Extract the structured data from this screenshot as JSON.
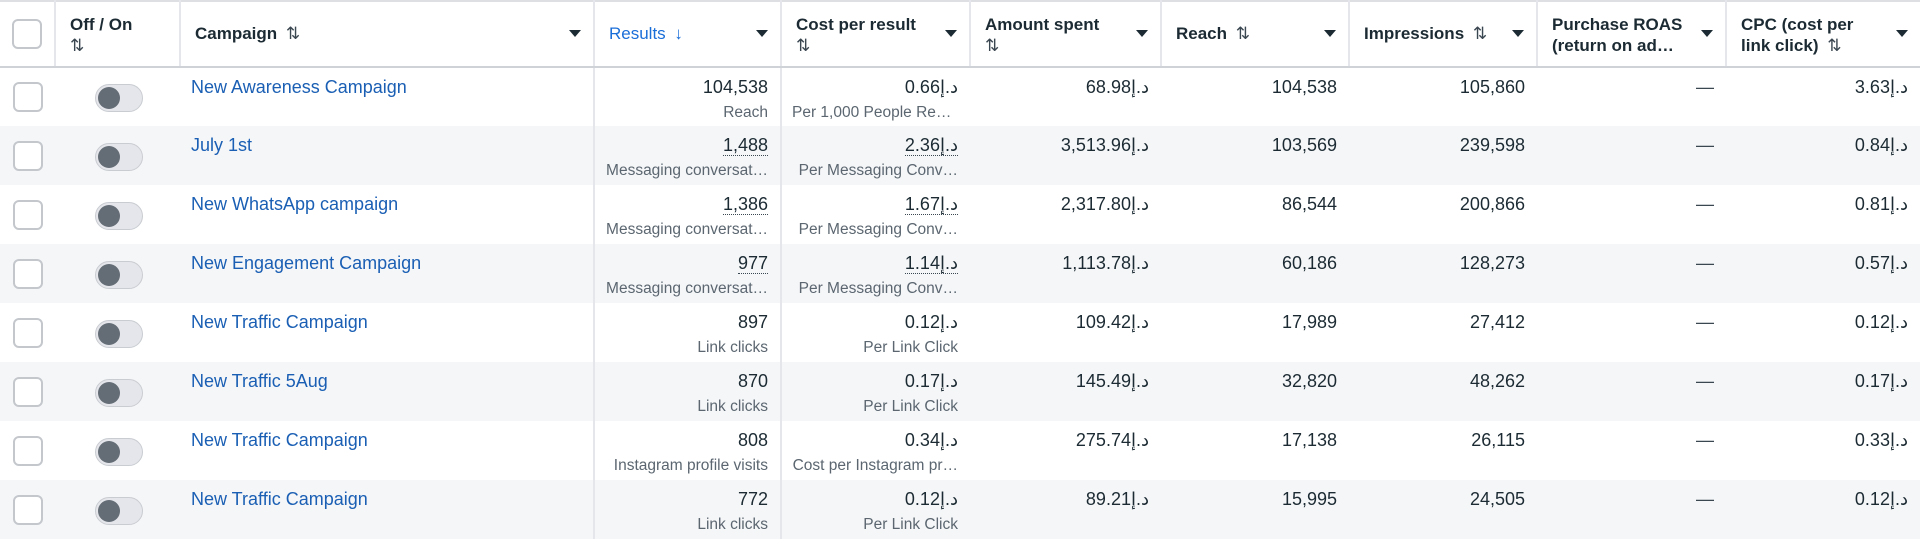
{
  "columns": {
    "toggle": "Off / On",
    "campaign": "Campaign",
    "results": "Results",
    "cost_per_result": "Cost per result",
    "amount_spent": "Amount spent",
    "reach": "Reach",
    "impressions": "Impressions",
    "roas_line1": "Purchase ROAS",
    "roas_line2": "(return on ad…",
    "cpc_line1": "CPC (cost per",
    "cpc_line2": "link click)"
  },
  "icons": {
    "sort_both": "⇅",
    "sort_down": "↓"
  },
  "rows": [
    {
      "campaign": "New Awareness Campaign",
      "results": "104,538",
      "results_label": "Reach",
      "cpr": "0.66د.إ",
      "cpr_label": "Per 1,000 People Rea…",
      "amount": "68.98د.إ",
      "reach": "104,538",
      "impressions": "105,860",
      "roas": "—",
      "cpc": "3.63د.إ"
    },
    {
      "campaign": "July 1st",
      "results": "1,488",
      "results_label": "Messaging conversat…",
      "cpr": "2.36د.إ",
      "cpr_label": "Per Messaging Conv…",
      "amount": "3,513.96د.إ",
      "reach": "103,569",
      "impressions": "239,598",
      "roas": "—",
      "cpc": "0.84د.إ"
    },
    {
      "campaign": "New WhatsApp campaign",
      "results": "1,386",
      "results_label": "Messaging conversat…",
      "cpr": "1.67د.إ",
      "cpr_label": "Per Messaging Conv…",
      "amount": "2,317.80د.إ",
      "reach": "86,544",
      "impressions": "200,866",
      "roas": "—",
      "cpc": "0.81د.إ"
    },
    {
      "campaign": "New Engagement Campaign",
      "results": "977",
      "results_label": "Messaging conversat…",
      "cpr": "1.14د.إ",
      "cpr_label": "Per Messaging Conv…",
      "amount": "1,113.78د.إ",
      "reach": "60,186",
      "impressions": "128,273",
      "roas": "—",
      "cpc": "0.57د.إ"
    },
    {
      "campaign": "New Traffic Campaign",
      "results": "897",
      "results_label": "Link clicks",
      "cpr": "0.12د.إ",
      "cpr_label": "Per Link Click",
      "amount": "109.42د.إ",
      "reach": "17,989",
      "impressions": "27,412",
      "roas": "—",
      "cpc": "0.12د.إ"
    },
    {
      "campaign": "New Traffic 5Aug",
      "results": "870",
      "results_label": "Link clicks",
      "cpr": "0.17د.إ",
      "cpr_label": "Per Link Click",
      "amount": "145.49د.إ",
      "reach": "32,820",
      "impressions": "48,262",
      "roas": "—",
      "cpc": "0.17د.إ"
    },
    {
      "campaign": "New Traffic Campaign",
      "results": "808",
      "results_label": "Instagram profile visits",
      "cpr": "0.34د.إ",
      "cpr_label": "Cost per Instagram pr…",
      "amount": "275.74د.إ",
      "reach": "17,138",
      "impressions": "26,115",
      "roas": "—",
      "cpc": "0.33د.إ"
    },
    {
      "campaign": "New Traffic Campaign",
      "results": "772",
      "results_label": "Link clicks",
      "cpr": "0.12د.إ",
      "cpr_label": "Per Link Click",
      "amount": "89.21د.إ",
      "reach": "15,995",
      "impressions": "24,505",
      "roas": "—",
      "cpc": "0.12د.إ"
    }
  ]
}
